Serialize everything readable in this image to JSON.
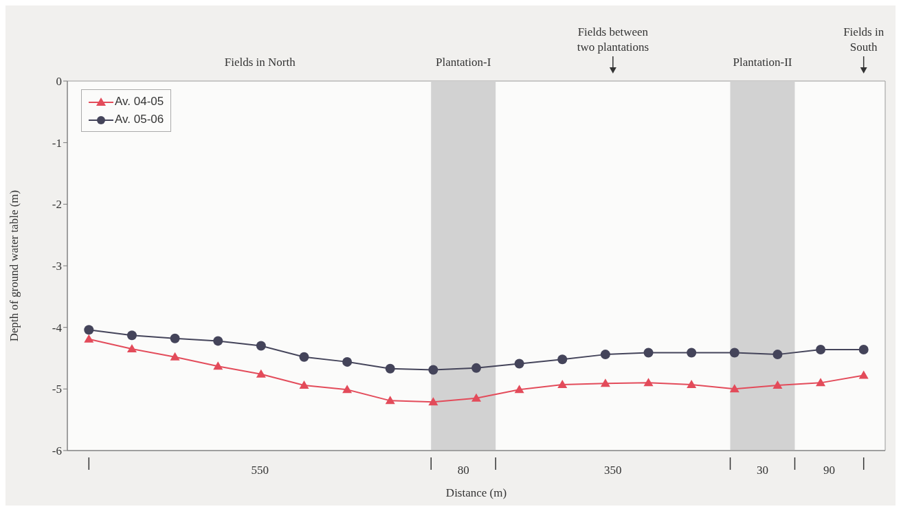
{
  "chart_data": {
    "type": "line",
    "xlabel": "Distance (m)",
    "ylabel": "Depth of ground water table (m)",
    "categories": [
      null,
      null,
      null,
      null,
      null,
      null,
      null,
      null,
      null,
      null,
      null,
      null,
      null,
      null,
      null,
      null,
      null,
      null,
      null
    ],
    "series": [
      {
        "name": "Av. 04-05",
        "color": "#e34b5a",
        "marker": "triangle",
        "values": [
          -4.19,
          -4.35,
          -4.48,
          -4.63,
          -4.76,
          -4.94,
          -5.01,
          -5.19,
          -5.21,
          -5.15,
          -5.01,
          -4.93,
          -4.91,
          -4.9,
          -4.93,
          -5.0,
          -4.94,
          -4.9,
          -4.78
        ]
      },
      {
        "name": "Av. 05-06",
        "color": "#44445a",
        "marker": "circle",
        "values": [
          -4.04,
          -4.13,
          -4.18,
          -4.22,
          -4.3,
          -4.48,
          -4.56,
          -4.67,
          -4.69,
          -4.66,
          -4.59,
          -4.52,
          -4.44,
          -4.41,
          -4.41,
          -4.41,
          -4.44,
          -4.36,
          -4.36
        ]
      }
    ],
    "ylim": [
      -6,
      0
    ],
    "yticks": [
      0,
      -1,
      -2,
      -3,
      -4,
      -5,
      -6
    ],
    "annotations": [
      "Fields in North",
      "Plantation-I",
      "Fields between two plantations",
      "Plantation-II",
      "Fields in South",
      "550",
      "80",
      "350",
      "30",
      "90"
    ],
    "grid": false,
    "legend": "top left",
    "line_style": "solid"
  }
}
